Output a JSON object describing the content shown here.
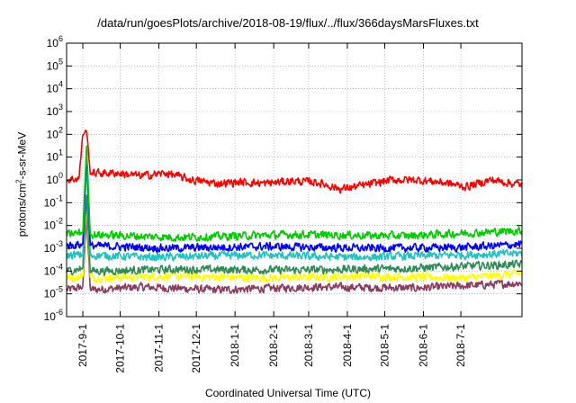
{
  "chart_data": {
    "type": "line",
    "title": "/data/run/goesPlots/archive/2018-08-19/flux/../flux/366daysMarsFluxes.txt",
    "xlabel": "Coordinated Universal Time (UTC)",
    "ylabel_main": "protons/cm",
    "ylabel_sup": "2",
    "ylabel_rest": "-s-sr-MeV",
    "yscale": "log",
    "ylim": [
      1e-06,
      1000000.0
    ],
    "x_range": [
      "2017-08-19",
      "2018-08-19"
    ],
    "grid": true,
    "y_ticks": [
      {
        "base": "10",
        "exp": "-6",
        "value": -6
      },
      {
        "base": "10",
        "exp": "-5",
        "value": -5
      },
      {
        "base": "10",
        "exp": "-4",
        "value": -4
      },
      {
        "base": "10",
        "exp": "-3",
        "value": -3
      },
      {
        "base": "10",
        "exp": "-2",
        "value": -2
      },
      {
        "base": "10",
        "exp": "-1",
        "value": -1
      },
      {
        "base": "10",
        "exp": "0",
        "value": 0
      },
      {
        "base": "10",
        "exp": "1",
        "value": 1
      },
      {
        "base": "10",
        "exp": "2",
        "value": 2
      },
      {
        "base": "10",
        "exp": "3",
        "value": 3
      },
      {
        "base": "10",
        "exp": "4",
        "value": 4
      },
      {
        "base": "10",
        "exp": "5",
        "value": 5
      },
      {
        "base": "10",
        "exp": "6",
        "value": 6
      }
    ],
    "x_ticks": [
      "2017-9-1",
      "2017-10-1",
      "2017-11-1",
      "2017-12-1",
      "2018-1-1",
      "2018-2-1",
      "2018-3-1",
      "2018-4-1",
      "2018-5-1",
      "2018-6-1",
      "2018-7-1"
    ],
    "series": [
      {
        "color": "#8b3a5e",
        "values": [
          [
            0,
            1.5e-05
          ],
          [
            13,
            2e-05
          ],
          [
            16,
            0.03
          ],
          [
            19,
            1.5e-05
          ],
          [
            60,
            2e-05
          ],
          [
            120,
            1.5e-05
          ],
          [
            200,
            2e-05
          ],
          [
            280,
            1.8e-05
          ],
          [
            366,
            3e-05
          ]
        ]
      },
      {
        "color": "#ffff00",
        "values": [
          [
            0,
            5e-05
          ],
          [
            13,
            6e-05
          ],
          [
            16,
            0.1
          ],
          [
            19,
            5e-05
          ],
          [
            80,
            6e-05
          ],
          [
            160,
            5e-05
          ],
          [
            240,
            6e-05
          ],
          [
            320,
            5e-05
          ],
          [
            366,
            8e-05
          ]
        ]
      },
      {
        "color": "#2e8b57",
        "values": [
          [
            0,
            0.0001
          ],
          [
            13,
            0.00013
          ],
          [
            16,
            0.2
          ],
          [
            19,
            0.0001
          ],
          [
            90,
            0.00012
          ],
          [
            180,
            0.00011
          ],
          [
            270,
            0.00013
          ],
          [
            366,
            0.0002
          ]
        ]
      },
      {
        "color": "#20c2c2",
        "values": [
          [
            0,
            0.0005
          ],
          [
            13,
            0.0005
          ],
          [
            16,
            5
          ],
          [
            19,
            0.0005
          ],
          [
            70,
            0.0004
          ],
          [
            150,
            0.0005
          ],
          [
            230,
            0.0004
          ],
          [
            310,
            0.0005
          ],
          [
            366,
            0.0006
          ]
        ]
      },
      {
        "color": "#0000ff",
        "values": [
          [
            0,
            0.0013
          ],
          [
            13,
            0.0015
          ],
          [
            16,
            20
          ],
          [
            19,
            0.0013
          ],
          [
            80,
            0.001
          ],
          [
            160,
            0.0012
          ],
          [
            240,
            0.001
          ],
          [
            320,
            0.0011
          ],
          [
            366,
            0.0015
          ]
        ]
      },
      {
        "color": "#00cc00",
        "values": [
          [
            0,
            0.004
          ],
          [
            13,
            0.005
          ],
          [
            16,
            30
          ],
          [
            19,
            0.004
          ],
          [
            90,
            0.003
          ],
          [
            180,
            0.004
          ],
          [
            270,
            0.0035
          ],
          [
            366,
            0.006
          ]
        ]
      },
      {
        "color": "#ff0000",
        "values": [
          [
            0,
            1
          ],
          [
            10,
            1.2
          ],
          [
            13,
            100
          ],
          [
            16,
            150
          ],
          [
            19,
            2
          ],
          [
            40,
            2
          ],
          [
            60,
            1.5
          ],
          [
            80,
            2
          ],
          [
            100,
            1
          ],
          [
            120,
            0.7
          ],
          [
            140,
            0.8
          ],
          [
            160,
            0.7
          ],
          [
            180,
            0.9
          ],
          [
            200,
            0.8
          ],
          [
            220,
            0.4
          ],
          [
            240,
            0.6
          ],
          [
            260,
            1
          ],
          [
            280,
            1
          ],
          [
            300,
            0.8
          ],
          [
            320,
            0.5
          ],
          [
            340,
            1
          ],
          [
            366,
            0.6
          ]
        ]
      }
    ]
  }
}
